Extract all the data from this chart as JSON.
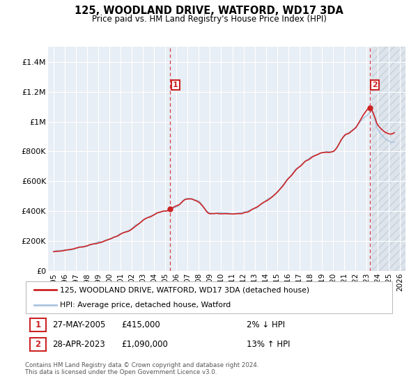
{
  "title": "125, WOODLAND DRIVE, WATFORD, WD17 3DA",
  "subtitle": "Price paid vs. HM Land Registry's House Price Index (HPI)",
  "ylim": [
    0,
    1500000
  ],
  "yticks": [
    0,
    200000,
    400000,
    600000,
    800000,
    1000000,
    1200000,
    1400000
  ],
  "ytick_labels": [
    "£0",
    "£200K",
    "£400K",
    "£600K",
    "£800K",
    "£1M",
    "£1.2M",
    "£1.4M"
  ],
  "xlim_left": 1994.5,
  "xlim_right": 2026.5,
  "hpi_color": "#a8c4e0",
  "price_color": "#cc2222",
  "background_color": "#e8eef5",
  "grid_color": "#ffffff",
  "hatch_color": "#d8dde5",
  "event1_x": 2005.42,
  "event1_y": 415000,
  "event2_x": 2023.33,
  "event2_y": 1090000,
  "legend_label1": "125, WOODLAND DRIVE, WATFORD, WD17 3DA (detached house)",
  "legend_label2": "HPI: Average price, detached house, Watford",
  "table_row1": [
    "1",
    "27-MAY-2005",
    "£415,000",
    "2% ↓ HPI"
  ],
  "table_row2": [
    "2",
    "28-APR-2023",
    "£1,090,000",
    "13% ↑ HPI"
  ],
  "footnote": "Contains HM Land Registry data © Crown copyright and database right 2024.\nThis data is licensed under the Open Government Licence v3.0."
}
